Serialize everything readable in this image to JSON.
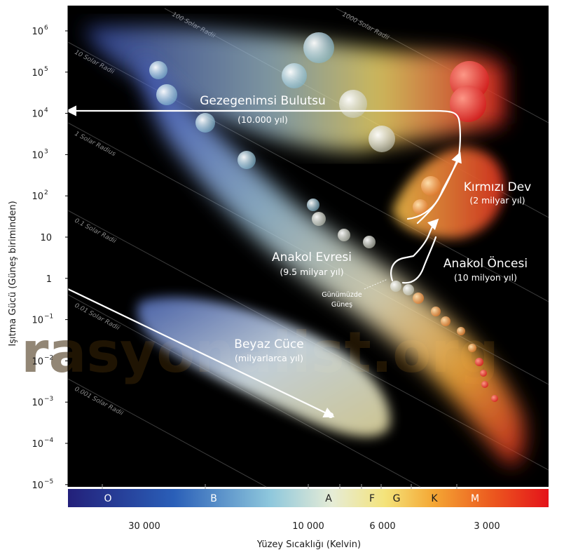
{
  "figure": {
    "y_axis_title": "Işıtma Gücü (Güneş biriminden)",
    "x_axis_title": "Yüzey Sıcaklığı (Kelvin)",
    "watermark": "rasyonalist.org",
    "colors": {
      "background": "#000000",
      "main_sequence": "#dfe6c8",
      "red_giant": "#e8552a",
      "white_dwarf": "#bfd6e8",
      "track": "#ffffff"
    }
  },
  "y_ticks": [
    {
      "base": "10",
      "exp": "6"
    },
    {
      "base": "10",
      "exp": "5"
    },
    {
      "base": "10",
      "exp": "4"
    },
    {
      "base": "10",
      "exp": "3"
    },
    {
      "base": "10",
      "exp": "2"
    },
    {
      "base": "10",
      "exp": ""
    },
    {
      "base": "1",
      "exp": ""
    },
    {
      "base": "10",
      "exp": "−1"
    },
    {
      "base": "10",
      "exp": "−2"
    },
    {
      "base": "10",
      "exp": "−3"
    },
    {
      "base": "10",
      "exp": "−4"
    },
    {
      "base": "10",
      "exp": "−5"
    }
  ],
  "x_ticks": [
    "30 000",
    "10 000",
    "6 000",
    "3 000"
  ],
  "spectral_classes": [
    "O",
    "B",
    "A",
    "F",
    "G",
    "K",
    "M"
  ],
  "radius_lines": [
    "1000 Solar Radii",
    "100 Solar Radii",
    "10 Solar Radii",
    "1 Solar Radius",
    "0.1 Solar Radii",
    "0.01 Solar Radii",
    "0.001 Solar Radii"
  ],
  "regions": {
    "nebula": {
      "title": "Gezegenimsi Bulutsu",
      "subtitle": "(10.000 yıl)"
    },
    "red_giant": {
      "title": "Kırmızı Dev",
      "subtitle": "(2 milyar yıl)"
    },
    "main_sequence": {
      "title": "Anakol Evresi",
      "subtitle": "(9.5 milyar yıl)"
    },
    "pre_main_sequence": {
      "title": "Anakol Öncesi",
      "subtitle": "(10 milyon yıl)"
    },
    "white_dwarf": {
      "title": "Beyaz Cüce",
      "subtitle": "(milyarlarca yıl)"
    },
    "sun_today": {
      "line1": "Günümüzde",
      "line2": "Güneş"
    }
  }
}
